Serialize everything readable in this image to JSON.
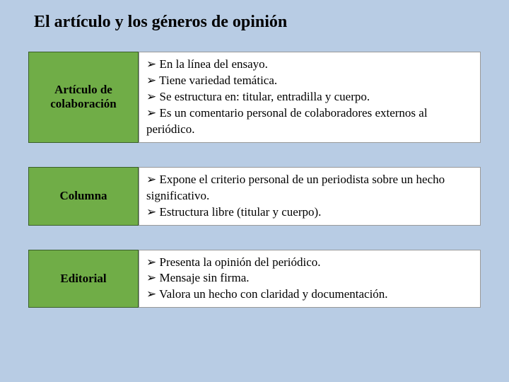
{
  "title": "El artículo y los géneros de opinión",
  "colors": {
    "page_bg": "#b8cce4",
    "label_bg": "#70ad47",
    "label_border": "#3a5f2a",
    "content_bg": "#ffffff",
    "content_border": "#999999",
    "text": "#000000"
  },
  "rows": [
    {
      "label": "Artículo de colaboración",
      "lines": [
        "➢ En la línea del ensayo.",
        "➢ Tiene variedad temática.",
        "➢ Se estructura en: titular, entradilla y cuerpo.",
        "➢ Es un comentario personal de colaboradores externos al periódico."
      ]
    },
    {
      "label": "Columna",
      "lines": [
        "➢ Expone el criterio personal de un periodista sobre un hecho significativo.",
        "➢ Estructura libre (titular y cuerpo)."
      ]
    },
    {
      "label": "Editorial",
      "lines": [
        "➢ Presenta la opinión del periódico.",
        "➢ Mensaje sin firma.",
        "➢ Valora un hecho con claridad y documentación."
      ]
    }
  ]
}
